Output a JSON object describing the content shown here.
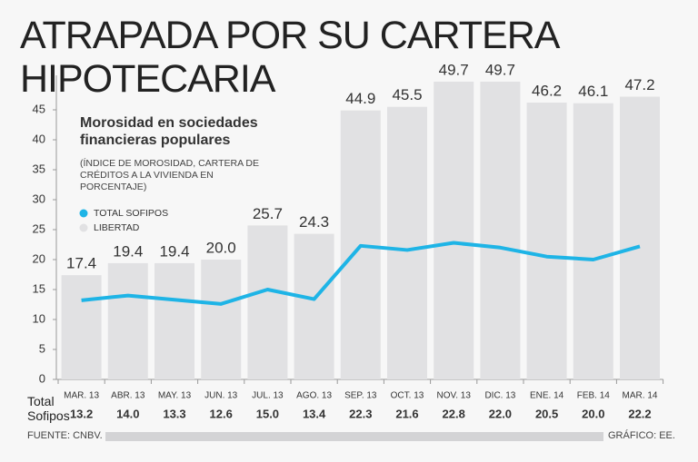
{
  "chart_data": {
    "type": "bar",
    "title": [
      "ATRAPADA POR SU CARTERA",
      "HIPOTECARIA"
    ],
    "subtitle": "Morosidad en sociedades financieras populares",
    "note": "(ÍNDICE DE MOROSIDAD, CARTERA DE CRÉDITOS A LA VIVIENDA EN PORCENTAJE)",
    "categories": [
      "MAR. 13",
      "ABR. 13",
      "MAY. 13",
      "JUN. 13",
      "JUL. 13",
      "AGO. 13",
      "SEP. 13",
      "OCT. 13",
      "NOV. 13",
      "DIC. 13",
      "ENE. 14",
      "FEB. 14",
      "MAR. 14"
    ],
    "series": [
      {
        "name": "TOTAL SOFIPOS",
        "type": "line",
        "color": "#1eb4e6",
        "values": [
          13.2,
          14.0,
          13.3,
          12.6,
          15.0,
          13.4,
          22.3,
          21.6,
          22.8,
          22.0,
          20.5,
          20.0,
          22.2
        ],
        "value_labels": [
          "13.2",
          "14.0",
          "13.3",
          "12.6",
          "15.0",
          "13.4",
          "22.3",
          "21.6",
          "22.8",
          "22.0",
          "20.5",
          "20.0",
          "22.2"
        ]
      },
      {
        "name": "LIBERTAD",
        "type": "bar",
        "color": "#e1e1e3",
        "values": [
          17.4,
          19.4,
          19.4,
          20.0,
          25.7,
          24.3,
          44.9,
          45.5,
          49.7,
          49.7,
          46.2,
          46.1,
          47.2
        ],
        "value_labels": [
          "17.4",
          "19.4",
          "19.4",
          "20.0",
          "25.7",
          "24.3",
          "44.9",
          "45.5",
          "49.7",
          "49.7",
          "46.2",
          "46.1",
          "47.2"
        ]
      }
    ],
    "table_label": "Total Sofipos",
    "ylim": [
      0,
      50
    ],
    "yticks": [
      0,
      5,
      10,
      15,
      20,
      25,
      30,
      35,
      40,
      45
    ],
    "source": "FUENTE: CNBV.",
    "credit": "GRÁFICO: EE."
  }
}
